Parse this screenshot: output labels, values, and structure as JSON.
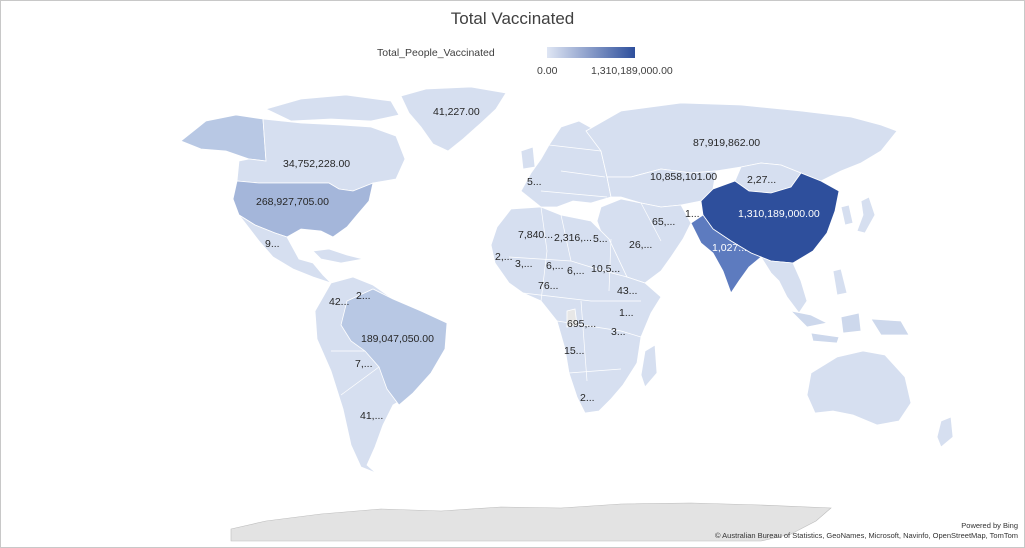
{
  "title": "Total Vaccinated",
  "legend": {
    "field": "Total_People_Vaccinated",
    "min": "0.00",
    "max": "1,310,189,000.00",
    "color_min": "#dfe6f4",
    "color_max": "#2e4f9c"
  },
  "credits": {
    "powered_by": "Powered by Bing",
    "attribution": "© Australian Bureau of Statistics, GeoNames, Microsoft, Navinfo, OpenStreetMap, TomTom"
  },
  "labels": {
    "greenland": "41,227.00",
    "canada": "34,752,228.00",
    "usa": "268,927,705.00",
    "mexico": "9...",
    "russia": "87,919,862.00",
    "kazakhstan": "10,858,101.00",
    "mongolia": "2,27...",
    "china": "1,310,189,000.00",
    "india": "1,027...",
    "iran": "65,...",
    "afghanistan": "1...",
    "saudi": "26,...",
    "spain": "5...",
    "algeria": "7,840...",
    "libya": "2,316,...",
    "egypt": "5...",
    "mauritania": "2,...",
    "mali": "3,...",
    "niger": "6,...",
    "chad": "6,...",
    "sudan": "10,5...",
    "nigeria": "76...",
    "ethiopia": "43...",
    "kenya": "1...",
    "drc": "695,...",
    "tanzania": "3...",
    "angola": "15...",
    "south_africa": "2...",
    "venezuela": "2...",
    "colombia": "42...",
    "brazil": "189,047,050.00",
    "bolivia": "7,...",
    "argentina": "41,..."
  },
  "map_colors": {
    "default": "#d6dff0",
    "light": "#cdd8ec",
    "medium": "#b8c8e4",
    "usa": "#a4b6da",
    "india": "#5d7bbf",
    "china": "#2e4f9c",
    "antarctica": "#e3e3e3",
    "no_data": "#e7e7e7"
  }
}
